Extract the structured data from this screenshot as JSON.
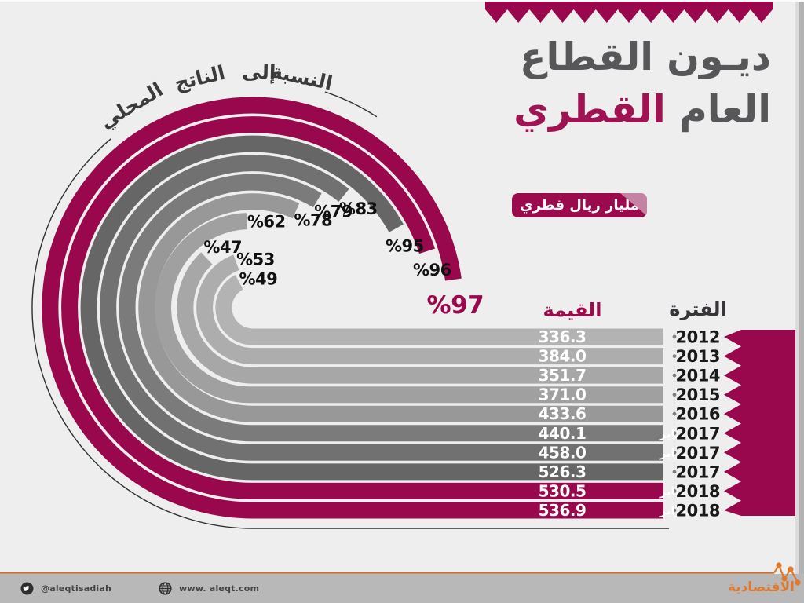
{
  "page": {
    "background": "#EFEEEE"
  },
  "header": {
    "title_line1": "ديـون القطاع",
    "title_line2_gray": "العام ",
    "title_line2_accent": "القطري",
    "unit_badge_label": "مليار ريال قطري"
  },
  "curved_axis_label": {
    "text": "النسبة إلى الناتج المحلي",
    "words": [
      "النسبة",
      "إلى",
      "الناتج",
      "المحلي"
    ]
  },
  "table_headers": {
    "value": "القيمة",
    "period": "الفترة"
  },
  "chart_data": {
    "type": "bar",
    "variant": "circular-radial-bars-with-table",
    "title": "ديون القطاع العام القطري",
    "unit": "مليار ريال قطري",
    "ratio_axis_note": "النسبة إلى الناتج المحلي",
    "rows": [
      {
        "year": "2012",
        "month": "",
        "value": "336.3",
        "pct_of_gdp": 49
      },
      {
        "year": "2013",
        "month": "",
        "value": "384.0",
        "pct_of_gdp": 53
      },
      {
        "year": "2014",
        "month": "",
        "value": "351.7",
        "pct_of_gdp": 47
      },
      {
        "year": "2015",
        "month": "",
        "value": "371.0",
        "pct_of_gdp": 62
      },
      {
        "year": "2016",
        "month": "",
        "value": "433.6",
        "pct_of_gdp": 78
      },
      {
        "year": "2017",
        "month": "يناير",
        "value": "440.1",
        "pct_of_gdp": 79
      },
      {
        "year": "2017",
        "month": "فبراير",
        "value": "458.0",
        "pct_of_gdp": 83
      },
      {
        "year": "2017",
        "month": "",
        "value": "526.3",
        "pct_of_gdp": 95
      },
      {
        "year": "2018",
        "month": "يناير",
        "value": "530.5",
        "pct_of_gdp": 96
      },
      {
        "year": "2018",
        "month": "فبراير",
        "value": "536.9",
        "pct_of_gdp": 97
      }
    ],
    "row_colors": [
      "#B3B3B3",
      "#ADADAD",
      "#A7A7A7",
      "#A0A0A0",
      "#989898",
      "#7B7B7B",
      "#717171",
      "#666666",
      "#99074C",
      "#99074C"
    ],
    "pct_label_prefix": "%",
    "legend_position": "none",
    "grid": false
  },
  "footer": {
    "twitter_handle": "@aleqtisadiah",
    "website": "www. aleqt.com",
    "brand": "الاقتصادية"
  },
  "colors": {
    "accent": "#99074C",
    "accent_title": "#A01353",
    "badge_fold": "#C583A4",
    "title_gray": "#57575A",
    "pct_text": "#111111",
    "year_text": "#191919",
    "curved_text": "#3B3B3D",
    "outline": "#2F2F2F",
    "footer_bg": "#B9B8B8",
    "footer_line": "#C0703E",
    "brand_orange": "#DC7A31"
  }
}
